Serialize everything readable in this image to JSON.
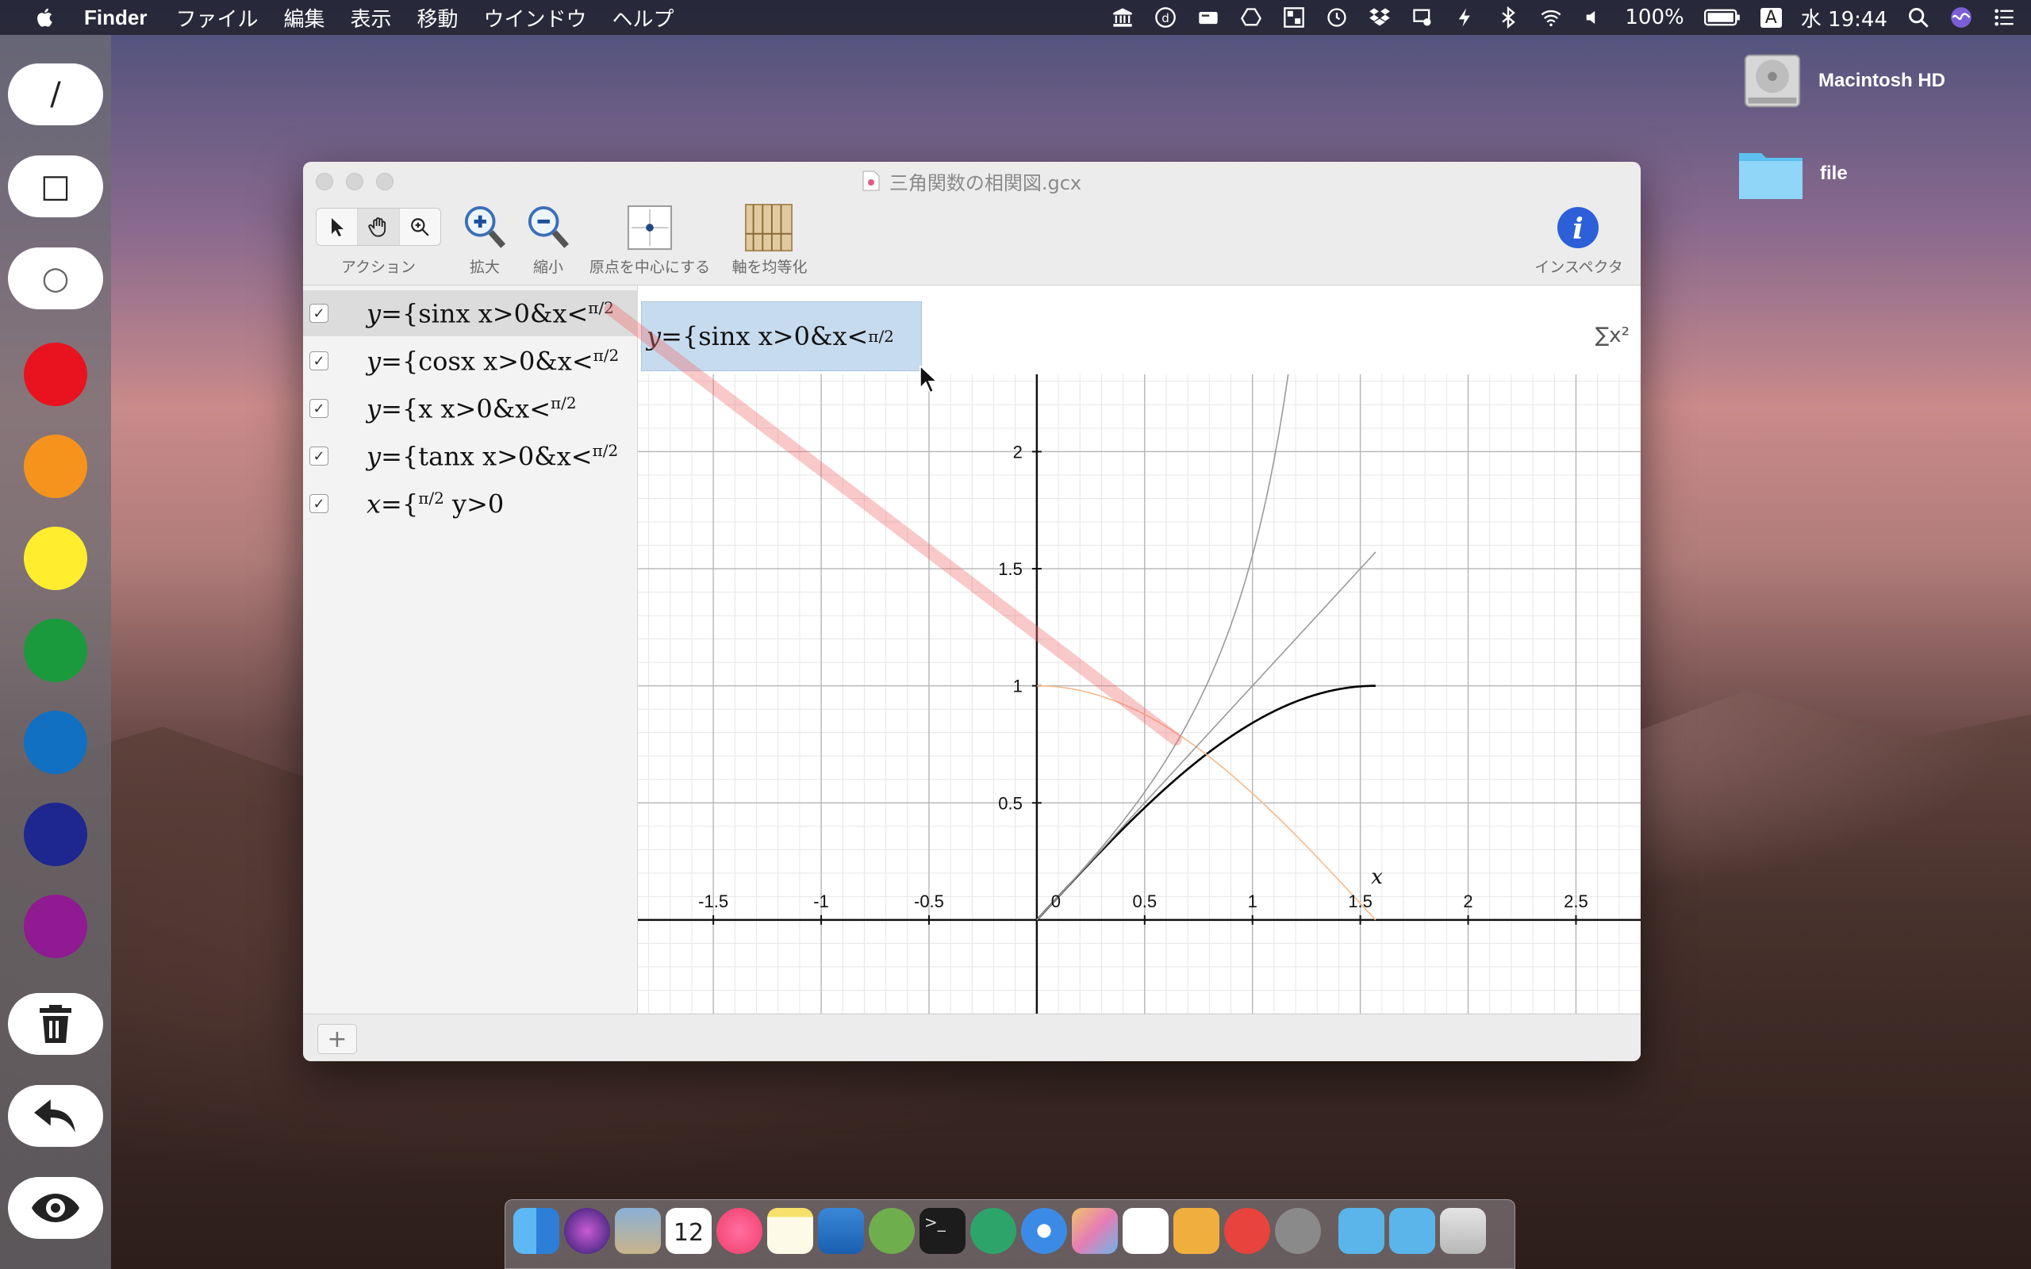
{
  "menubar": {
    "app_name": "Finder",
    "items": [
      "ファイル",
      "編集",
      "表示",
      "移動",
      "ウインドウ",
      "ヘルプ"
    ],
    "battery": "100%",
    "input_mode": "A",
    "clock": "水 19:44"
  },
  "desktop": {
    "items": [
      {
        "label": "Macintosh HD",
        "icon": "hard-drive-icon"
      },
      {
        "label": "file",
        "icon": "folder-icon"
      }
    ]
  },
  "palette": {
    "tools": [
      "/",
      "□",
      "○"
    ],
    "colors": [
      "#e8131f",
      "#f5931d",
      "#ffed2e",
      "#1a9a3c",
      "#1170c2",
      "#1e2790",
      "#8f1a91"
    ]
  },
  "window": {
    "title": "三角関数の相関図.gcx",
    "toolbar": {
      "action_label": "アクション",
      "zoom_in_label": "拡大",
      "zoom_out_label": "縮小",
      "center_label": "原点を中心にする",
      "equalize_label": "軸を均等化",
      "inspector_label": "インスペクタ"
    },
    "equations": [
      {
        "checked": true,
        "lhs": "y=",
        "body": "sinx  x>0&x<",
        "frac": "π/2"
      },
      {
        "checked": true,
        "lhs": "y=",
        "body": "cosx  x>0&x<",
        "frac": "π/2"
      },
      {
        "checked": true,
        "lhs": "y=",
        "body": "x  x>0&x<",
        "frac": "π/2"
      },
      {
        "checked": true,
        "lhs": "y=",
        "body": "tanx  x>0&x<",
        "frac": "π/2"
      },
      {
        "checked": true,
        "lhs": "x=",
        "body": "y>0",
        "frac": "π/2"
      }
    ],
    "editor": {
      "lhs": "y=",
      "body": "sinx  x>0&x<",
      "frac": "π/2",
      "sigma": "∑x²"
    },
    "graph": {
      "x_ticks": [
        "-1.5",
        "-1",
        "-0.5",
        "0",
        "0.5",
        "1",
        "1.5",
        "2",
        "2.5"
      ],
      "y_ticks": [
        "2",
        "1.5",
        "1",
        "0.5"
      ],
      "x_axis_label": "x"
    },
    "add_button": "+"
  },
  "chart_data": {
    "type": "line",
    "xlim": [
      -1.85,
      2.8
    ],
    "ylim": [
      -0.4,
      2.33
    ],
    "series": [
      {
        "name": "y=sinx",
        "color": "#000000",
        "domain": [
          0,
          1.5708
        ]
      },
      {
        "name": "y=cosx",
        "color": "#f5b98a",
        "domain": [
          0,
          1.5708
        ]
      },
      {
        "name": "y=x",
        "color": "#9a9a9a",
        "domain": [
          0,
          1.5708
        ]
      },
      {
        "name": "y=tanx",
        "color": "#9a9a9a",
        "domain": [
          0,
          1.5708
        ]
      }
    ]
  }
}
